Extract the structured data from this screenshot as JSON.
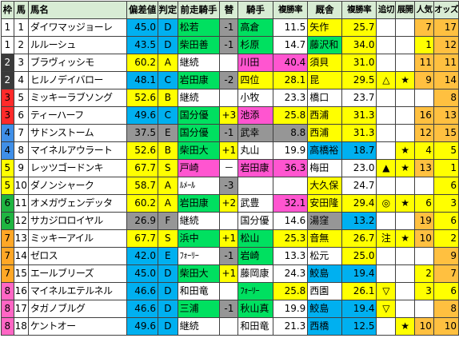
{
  "headers": [
    "枠",
    "馬",
    "馬名",
    "偏差値",
    "判定",
    "前走騎手",
    "替",
    "騎手",
    "複勝率",
    "厩舎",
    "複勝率",
    "追切",
    "展開",
    "人気",
    "オッズ"
  ],
  "colors": {
    "header": "#d8ecd4",
    "waku": [
      "#ffffff",
      "#ffffff",
      "#3a3a3a",
      "#ff2a2a",
      "#3f8fe8",
      "#ffff00",
      "#1fb541",
      "#ffa726",
      "#ff66c4"
    ],
    "blue": "#00b0f0",
    "gray": "#969696",
    "green": "#00e060",
    "pink": "#ff55d0",
    "yellow": "#ffff00",
    "orange": "#ffa500",
    "lightorange": "#ffc040"
  },
  "rows": [
    {
      "waku": "1",
      "uma": "1",
      "name": "ダイワマッジョーレ",
      "score": "45.0",
      "grade": "D",
      "prev_jockey": "松若",
      "change": "-1",
      "jockey": "高倉",
      "j_rate": "11.5",
      "stable": "矢作",
      "s_rate": "25.7",
      "oikiri": "",
      "tenkai": "",
      "pop": "7",
      "odds": "17"
    },
    {
      "waku": "1",
      "uma": "2",
      "name": "ルルーシュ",
      "score": "43.5",
      "grade": "D",
      "prev_jockey": "柴田善",
      "change": "-1",
      "jockey": "杉原",
      "j_rate": "14.7",
      "stable": "藤沢和",
      "s_rate": "34.0",
      "oikiri": "",
      "tenkai": "",
      "pop": "1",
      "odds": "12"
    },
    {
      "waku": "2",
      "uma": "3",
      "name": "ブラヴィッシモ",
      "score": "60.2",
      "grade": "A",
      "prev_jockey": "継続",
      "change": "",
      "jockey": "川田",
      "j_rate": "40.4",
      "stable": "須貝",
      "s_rate": "31.0",
      "oikiri": "",
      "tenkai": "",
      "pop": "11",
      "odds": "11"
    },
    {
      "waku": "2",
      "uma": "4",
      "name": "ヒルノデイバロー",
      "score": "48.1",
      "grade": "C",
      "prev_jockey": "岩田康",
      "change": "-2",
      "jockey": "四位",
      "j_rate": "28.1",
      "stable": "昆",
      "s_rate": "29.5",
      "oikiri": "△",
      "tenkai": "★",
      "pop": "9",
      "odds": "14"
    },
    {
      "waku": "3",
      "uma": "5",
      "name": "ミッキーラブソング",
      "score": "52.6",
      "grade": "B",
      "prev_jockey": "継続",
      "change": "",
      "jockey": "小牧",
      "j_rate": "23.3",
      "stable": "橋口",
      "s_rate": "23.7",
      "oikiri": "",
      "tenkai": "",
      "pop": "",
      "odds": "8"
    },
    {
      "waku": "3",
      "uma": "6",
      "name": "ティーハーフ",
      "score": "49.6",
      "grade": "C",
      "prev_jockey": "国分優",
      "change": "+3",
      "jockey": "池添",
      "j_rate": "25.8",
      "stable": "西浦",
      "s_rate": "31.3",
      "oikiri": "",
      "tenkai": "",
      "pop": "16",
      "odds": "13"
    },
    {
      "waku": "4",
      "uma": "7",
      "name": "サドンストーム",
      "score": "37.5",
      "grade": "E",
      "prev_jockey": "国分優",
      "change": "-1",
      "jockey": "武幸",
      "j_rate": "8.8",
      "stable": "西浦",
      "s_rate": "31.3",
      "oikiri": "",
      "tenkai": "",
      "pop": "12",
      "odds": "15"
    },
    {
      "waku": "4",
      "uma": "8",
      "name": "マイネルアウラート",
      "score": "52.6",
      "grade": "B",
      "prev_jockey": "柴田大",
      "change": "+1",
      "jockey": "丸山",
      "j_rate": "19.9",
      "stable": "高橋裕",
      "s_rate": "18.7",
      "oikiri": "",
      "tenkai": "★",
      "pop": "4",
      "odds": "5"
    },
    {
      "waku": "5",
      "uma": "9",
      "name": "レッツゴードンキ",
      "score": "67.7",
      "grade": "S",
      "prev_jockey": "戸崎",
      "change": "－",
      "jockey": "岩田康",
      "j_rate": "36.3",
      "stable": "梅田",
      "s_rate": "23.0",
      "oikiri": "▲",
      "tenkai": "★",
      "pop": "13",
      "odds": "1"
    },
    {
      "waku": "5",
      "uma": "10",
      "name": "ダノンシャーク",
      "score": "58.7",
      "grade": "A",
      "prev_jockey": "ﾙﾒｰﾙ",
      "change": "-3",
      "jockey": "",
      "j_rate": "",
      "stable": "大久保",
      "s_rate": "24.7",
      "oikiri": "",
      "tenkai": "",
      "pop": "",
      "odds": "6"
    },
    {
      "waku": "6",
      "uma": "11",
      "name": "オメガヴェンデッタ",
      "score": "60.2",
      "grade": "A",
      "prev_jockey": "岩田康",
      "change": "+2",
      "jockey": "武豊",
      "j_rate": "32.1",
      "stable": "安田隆",
      "s_rate": "29.4",
      "oikiri": "◎",
      "tenkai": "★",
      "pop": "6",
      "odds": "3"
    },
    {
      "waku": "6",
      "uma": "12",
      "name": "サカジロロイヤル",
      "score": "26.9",
      "grade": "F",
      "prev_jockey": "継続",
      "change": "",
      "jockey": "国分優",
      "j_rate": "14.6",
      "stable": "湯窪",
      "s_rate": "13.2",
      "oikiri": "",
      "tenkai": "",
      "pop": "19",
      "odds": "6"
    },
    {
      "waku": "7",
      "uma": "13",
      "name": "ミッキーアイル",
      "score": "67.7",
      "grade": "S",
      "prev_jockey": "浜中",
      "change": "+1",
      "jockey": "松山",
      "j_rate": "25.3",
      "stable": "音無",
      "s_rate": "26.7",
      "oikiri": "注",
      "tenkai": "★",
      "pop": "10",
      "odds": "2"
    },
    {
      "waku": "7",
      "uma": "14",
      "name": "ゼロス",
      "score": "42.0",
      "grade": "E",
      "prev_jockey": "ﾌｫｰﾘｰ",
      "change": "-1",
      "jockey": "岩崎",
      "j_rate": "13.3",
      "stable": "松元",
      "s_rate": "25.0",
      "oikiri": "",
      "tenkai": "",
      "pop": "",
      "odds": "9"
    },
    {
      "waku": "7",
      "uma": "15",
      "name": "エールブリーズ",
      "score": "45.0",
      "grade": "D",
      "prev_jockey": "柴田大",
      "change": "+1",
      "jockey": "藤岡康",
      "j_rate": "24.3",
      "stable": "鮫島",
      "s_rate": "19.4",
      "oikiri": "",
      "tenkai": "",
      "pop": "2",
      "odds": "7"
    },
    {
      "waku": "8",
      "uma": "16",
      "name": "マイネルエテルネル",
      "score": "46.6",
      "grade": "D",
      "prev_jockey": "和田竜",
      "change": "",
      "jockey": "ﾌｫｰﾘｰ",
      "j_rate": "25.8",
      "stable": "西園",
      "s_rate": "26.1",
      "oikiri": "▽",
      "tenkai": "",
      "pop": "3",
      "odds": "6"
    },
    {
      "waku": "8",
      "uma": "17",
      "name": "タガノブルグ",
      "score": "46.6",
      "grade": "D",
      "prev_jockey": "三浦",
      "change": "-1",
      "jockey": "秋山真",
      "j_rate": "19.9",
      "stable": "鮫島",
      "s_rate": "19.4",
      "oikiri": "▽",
      "tenkai": "",
      "pop": "",
      "odds": "8"
    },
    {
      "waku": "8",
      "uma": "18",
      "name": "ケントオー",
      "score": "49.6",
      "grade": "D",
      "prev_jockey": "継続",
      "change": "",
      "jockey": "和田竜",
      "j_rate": "21.3",
      "stable": "西橋",
      "s_rate": "12.5",
      "oikiri": "",
      "tenkai": "★",
      "pop": "10",
      "odds": "10"
    }
  ]
}
